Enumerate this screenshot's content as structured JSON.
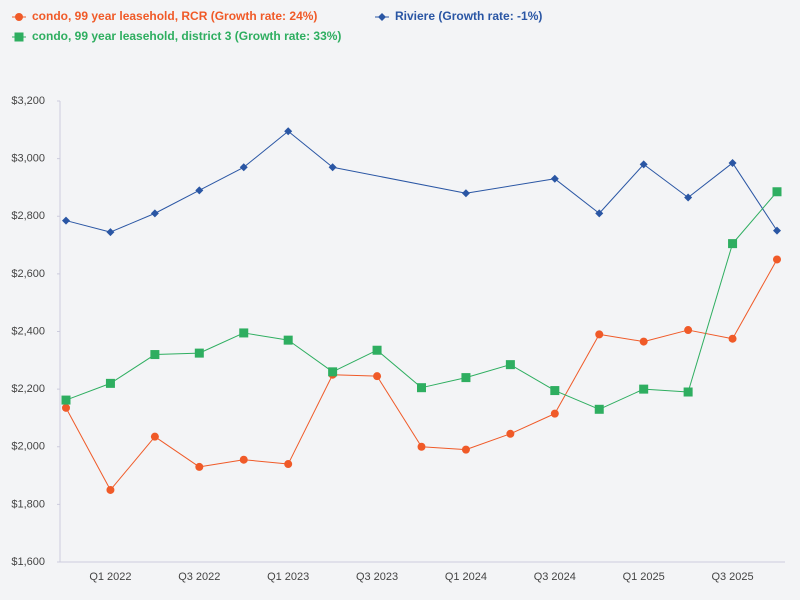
{
  "chart_data": {
    "type": "line",
    "categories": [
      null,
      "Q1 2022",
      null,
      "Q3 2022",
      null,
      "Q1 2023",
      null,
      "Q3 2023",
      null,
      "Q1 2024",
      null,
      "Q3 2024",
      null,
      "Q1 2025",
      null,
      "Q3 2025",
      null
    ],
    "series": [
      {
        "name": "condo, 99 year leasehold, RCR (Growth rate: 24%)",
        "color": "#f05a28",
        "marker": "circle",
        "values": [
          2135,
          1850,
          2035,
          1930,
          1955,
          1940,
          2250,
          2245,
          2000,
          1990,
          2045,
          2115,
          2390,
          2365,
          2405,
          2375,
          2650
        ]
      },
      {
        "name": "Riviere (Growth rate: -1%)",
        "color": "#2a56a4",
        "marker": "diamond",
        "values": [
          2785,
          2745,
          2810,
          2890,
          2970,
          3095,
          2970,
          null,
          null,
          2880,
          null,
          2930,
          2810,
          2980,
          2865,
          2985,
          2750
        ]
      },
      {
        "name": "condo, 99 year leasehold, district 3 (Growth rate: 33%)",
        "color": "#2eae60",
        "marker": "square",
        "values": [
          2162,
          2220,
          2320,
          2325,
          2395,
          2370,
          2260,
          2335,
          2205,
          2240,
          2285,
          2195,
          2130,
          2200,
          2190,
          2705,
          2885
        ]
      }
    ],
    "ylim": [
      1600,
      3200
    ],
    "yticks": [
      {
        "value": 1600,
        "label": "$1,600"
      },
      {
        "value": 1800,
        "label": "$1,800"
      },
      {
        "value": 2000,
        "label": "$2,000"
      },
      {
        "value": 2200,
        "label": "$2,200"
      },
      {
        "value": 2400,
        "label": "$2,400"
      },
      {
        "value": 2600,
        "label": "$2,600"
      },
      {
        "value": 2800,
        "label": "$2,800"
      },
      {
        "value": 3000,
        "label": "$3,000"
      },
      {
        "value": 3200,
        "label": "$3,200"
      }
    ],
    "connect_gaps": true
  }
}
